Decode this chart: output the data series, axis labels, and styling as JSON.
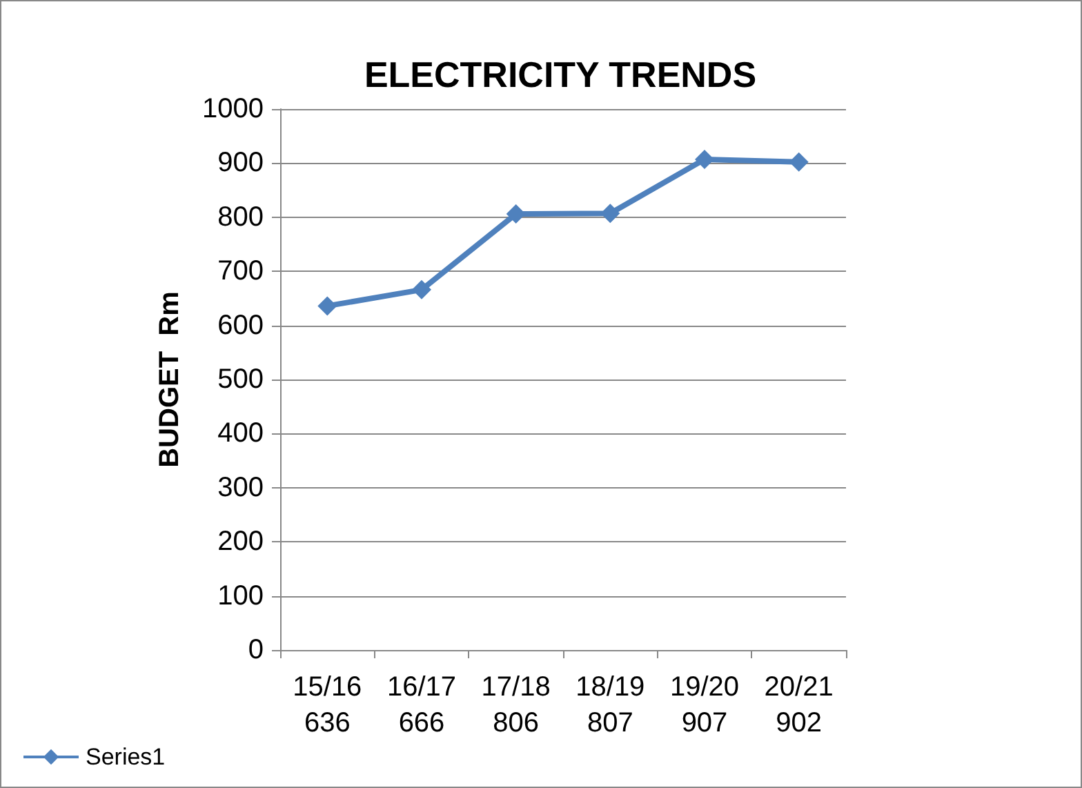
{
  "chart_data": {
    "type": "line",
    "title": "ELECTRICITY TRENDS",
    "ylabel": "BUDGET  Rm",
    "categories": [
      "15/16\n636",
      "16/17\n666",
      "17/18\n806",
      "18/19\n807",
      "19/20\n907",
      "20/21\n902"
    ],
    "series": [
      {
        "name": "Series1",
        "color": "#4f81bd",
        "values": [
          636,
          666,
          806,
          807,
          907,
          902
        ]
      }
    ],
    "ylim": [
      0,
      1000
    ],
    "yticks": [
      0,
      100,
      200,
      300,
      400,
      500,
      600,
      700,
      800,
      900,
      1000
    ],
    "grid": "y",
    "legend": "bottom left",
    "marker": "diamond",
    "line_style": "solid"
  }
}
